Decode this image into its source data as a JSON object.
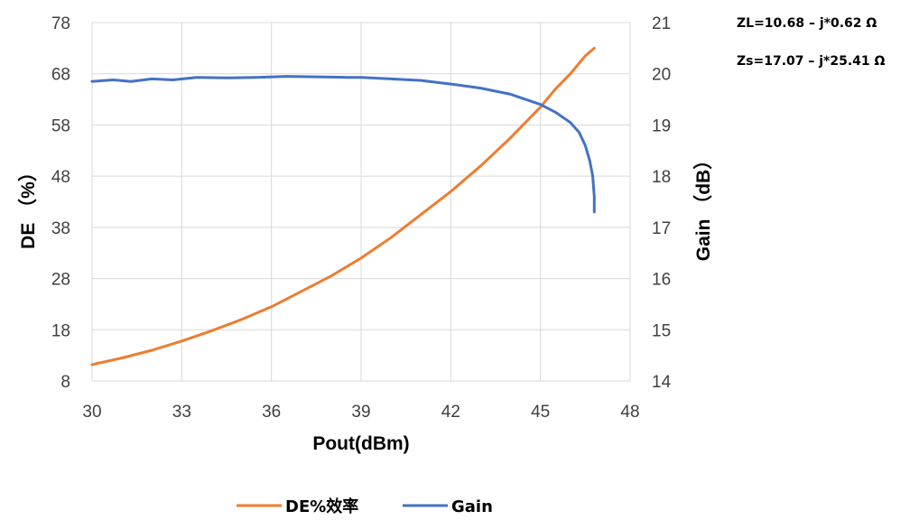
{
  "chart_data": {
    "type": "line",
    "xlabel": "Pout(dBm)",
    "ylabel_left": "DE （%）",
    "ylabel_right": "Gain （dB）",
    "x_ticks": [
      30,
      33,
      36,
      39,
      42,
      45,
      48
    ],
    "y_left_ticks": [
      8,
      18,
      28,
      38,
      48,
      58,
      68,
      78
    ],
    "y_right_ticks": [
      14,
      15,
      16,
      17,
      18,
      19,
      20,
      21
    ],
    "xlim": [
      30,
      48
    ],
    "y_left_lim": [
      8,
      78
    ],
    "y_right_lim": [
      14,
      21
    ],
    "grid": true,
    "legend_position": "bottom",
    "annotations": [
      "ZL=10.68 – j*0.62 Ω",
      "Zs=17.07 – j*25.41 Ω"
    ],
    "series": [
      {
        "name": "DE%效率",
        "axis": "left",
        "color": "#ED7D31",
        "points": [
          [
            30.0,
            11.2
          ],
          [
            31.0,
            12.5
          ],
          [
            32.0,
            14.0
          ],
          [
            33.0,
            15.8
          ],
          [
            34.0,
            17.8
          ],
          [
            35.0,
            20.0
          ],
          [
            36.0,
            22.5
          ],
          [
            37.0,
            25.5
          ],
          [
            38.0,
            28.5
          ],
          [
            39.0,
            32.0
          ],
          [
            40.0,
            36.0
          ],
          [
            41.0,
            40.5
          ],
          [
            42.0,
            45.0
          ],
          [
            43.0,
            50.0
          ],
          [
            44.0,
            55.5
          ],
          [
            45.0,
            61.5
          ],
          [
            45.5,
            65.0
          ],
          [
            46.0,
            68.0
          ],
          [
            46.5,
            71.5
          ],
          [
            46.8,
            73.0
          ]
        ]
      },
      {
        "name": "Gain",
        "axis": "right",
        "color": "#4472C4",
        "points": [
          [
            30.0,
            19.85
          ],
          [
            30.7,
            19.88
          ],
          [
            31.3,
            19.85
          ],
          [
            32.0,
            19.9
          ],
          [
            32.7,
            19.88
          ],
          [
            33.5,
            19.93
          ],
          [
            34.5,
            19.92
          ],
          [
            35.5,
            19.93
          ],
          [
            36.5,
            19.95
          ],
          [
            37.5,
            19.94
          ],
          [
            38.5,
            19.93
          ],
          [
            39.0,
            19.93
          ],
          [
            40.0,
            19.9
          ],
          [
            41.0,
            19.87
          ],
          [
            42.0,
            19.8
          ],
          [
            43.0,
            19.72
          ],
          [
            44.0,
            19.6
          ],
          [
            45.0,
            19.4
          ],
          [
            45.5,
            19.25
          ],
          [
            46.0,
            19.05
          ],
          [
            46.3,
            18.85
          ],
          [
            46.5,
            18.6
          ],
          [
            46.65,
            18.3
          ],
          [
            46.75,
            18.0
          ],
          [
            46.8,
            17.6
          ],
          [
            46.8,
            17.3
          ]
        ]
      }
    ]
  }
}
